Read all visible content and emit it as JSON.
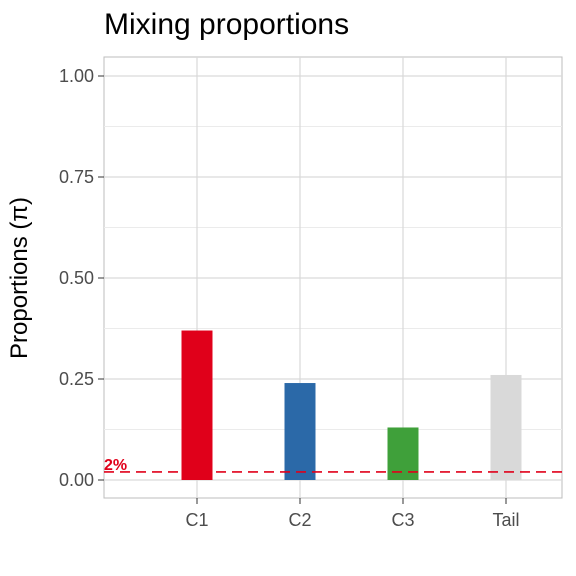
{
  "chart_data": {
    "type": "bar",
    "title": "Mixing proportions",
    "xlabel": "",
    "ylabel": "Proportions (π)",
    "categories": [
      "C1",
      "C2",
      "C3",
      "Tail"
    ],
    "values": [
      0.37,
      0.24,
      0.13,
      0.26
    ],
    "colors": [
      "#e0001a",
      "#2b69a8",
      "#3fa03a",
      "#d9d9d9"
    ],
    "ylim": [
      0,
      1
    ],
    "yticks": [
      0,
      0.25,
      0.5,
      0.75,
      1
    ],
    "ytick_labels": [
      "0.00",
      "0.25",
      "0.50",
      "0.75",
      "1.00"
    ],
    "reference_line": {
      "value": 0.02,
      "label": "2%",
      "color": "#e0001a",
      "style": "dashed"
    },
    "grid": true,
    "legend": "none"
  }
}
